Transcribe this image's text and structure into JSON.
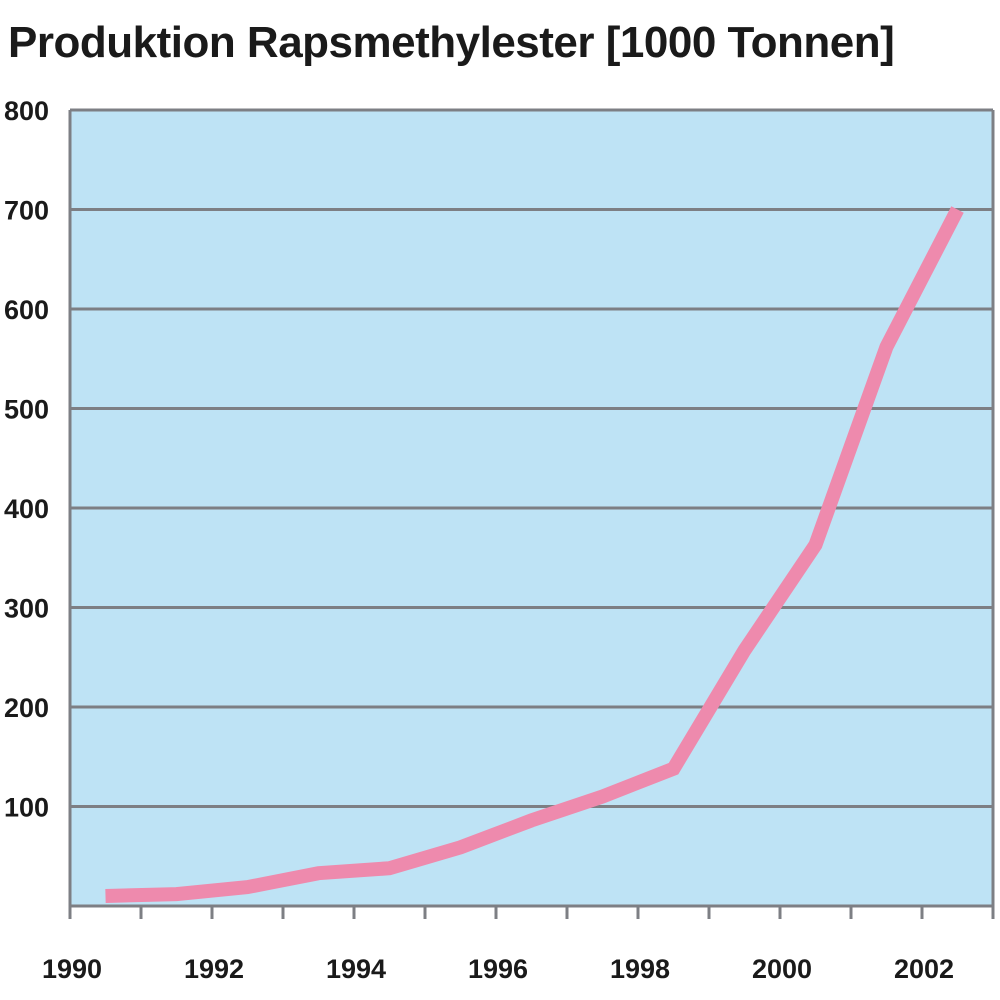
{
  "chart_data": {
    "type": "line",
    "title": "Produktion Rapsmethylester [1000 Tonnen]",
    "xlabel": "",
    "ylabel": "",
    "xlim": [
      1990,
      2003
    ],
    "ylim": [
      0,
      800
    ],
    "y_ticks": [
      100,
      200,
      300,
      400,
      500,
      600,
      700,
      800
    ],
    "x_ticks": [
      1990,
      1991,
      1992,
      1993,
      1994,
      1995,
      1996,
      1997,
      1998,
      1999,
      2000,
      2001,
      2002,
      2003
    ],
    "x_tick_labels": [
      {
        "value": 1990,
        "label": "1990"
      },
      {
        "value": 1992,
        "label": "1992"
      },
      {
        "value": 1994,
        "label": "1994"
      },
      {
        "value": 1996,
        "label": "1996"
      },
      {
        "value": 1998,
        "label": "1998"
      },
      {
        "value": 2000,
        "label": "2000"
      },
      {
        "value": 2002,
        "label": "2002"
      }
    ],
    "grid": true,
    "series": [
      {
        "x": [
          1990.5,
          1991.5,
          1992.5,
          1993.5,
          1994.5,
          1995.5,
          1996.5,
          1997.5,
          1998.5,
          1999.5,
          2000.5,
          2001.5,
          2002.5
        ],
        "y": [
          10,
          12,
          19,
          33,
          38,
          59,
          86,
          110,
          138,
          257,
          363,
          562,
          700
        ]
      }
    ],
    "colors": {
      "plot_background": "#bee3f5",
      "grid_line": "#7d7f84",
      "axis": "#7d7f84",
      "line": "#ee8aad"
    }
  }
}
